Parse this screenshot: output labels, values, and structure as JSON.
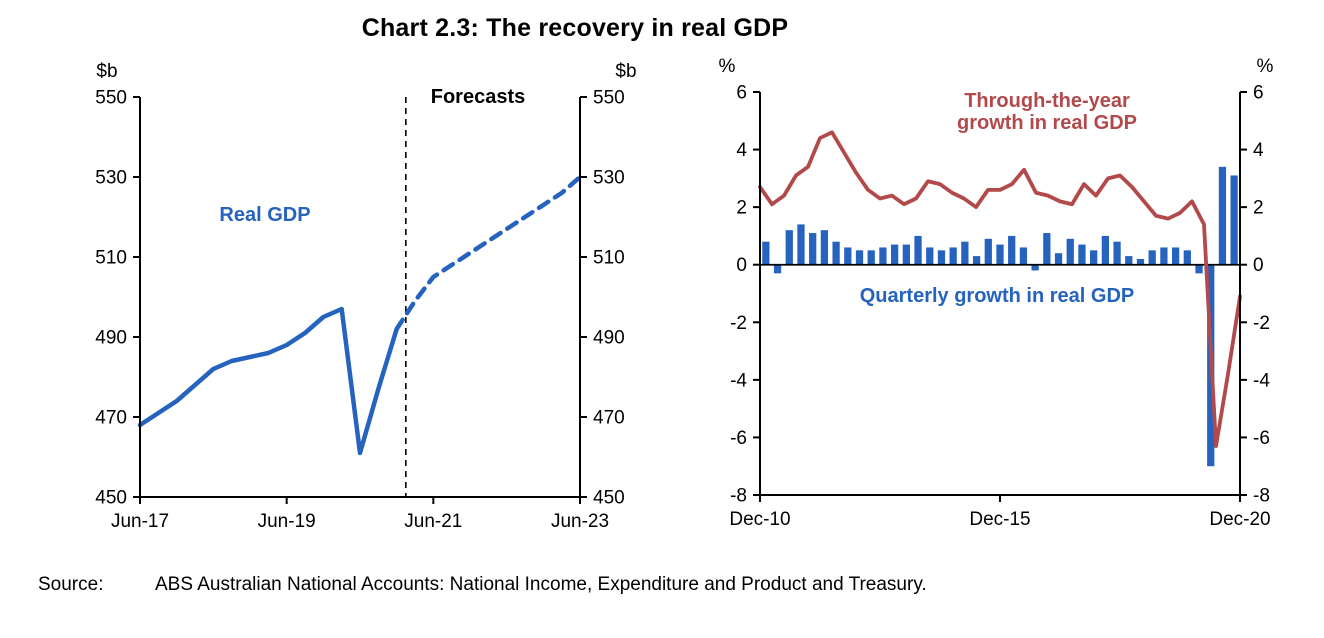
{
  "title": "Chart 2.3: The recovery in real GDP",
  "source": {
    "label": "Source:",
    "text": "ABS Australian National Accounts: National Income, Expenditure and Product and Treasury."
  },
  "colors": {
    "blue": "#2563BE",
    "red": "#B2494A",
    "axis": "#000000"
  },
  "chart_data": [
    {
      "id": "gdp_level",
      "type": "line",
      "title_annotation": "Real GDP",
      "unit_left": "$b",
      "unit_right": "$b",
      "ylim": [
        450,
        550
      ],
      "yticks": [
        450,
        470,
        490,
        510,
        530,
        550
      ],
      "xtick_labels": [
        "Jun-17",
        "Jun-19",
        "Jun-21",
        "Jun-23"
      ],
      "xtick_positions": [
        0,
        8,
        16,
        24
      ],
      "n_points": 25,
      "forecast_divider_index": 14.5,
      "annotations": {
        "series_label": "Real GDP",
        "forecast_label": "Forecasts"
      },
      "series": [
        {
          "name": "Real GDP (history)",
          "style": "solid",
          "start_index": 0,
          "x_labels_are_quarters_from": "Jun-17",
          "values": [
            468,
            471,
            474,
            478,
            482,
            484,
            485,
            486,
            488,
            491,
            495,
            497,
            461,
            477,
            492
          ]
        },
        {
          "name": "Real GDP (forecast)",
          "style": "dashed",
          "start_index": 14,
          "values": [
            492,
            499,
            505,
            508,
            511,
            514,
            517,
            520,
            523,
            526,
            530
          ]
        }
      ]
    },
    {
      "id": "gdp_growth",
      "type": "bar+line",
      "unit_left": "%",
      "unit_right": "%",
      "ylim": [
        -8,
        6
      ],
      "yticks": [
        -8,
        -6,
        -4,
        -2,
        0,
        2,
        4,
        6
      ],
      "xtick_labels": [
        "Dec-10",
        "Dec-15",
        "Dec-20"
      ],
      "xtick_positions": [
        0,
        20,
        40
      ],
      "n_points": 41,
      "annotations": {
        "line_label_line1": "Through-the-year",
        "line_label_line2": "growth in real GDP",
        "bar_label": "Quarterly growth in real GDP"
      },
      "bar_series": {
        "name": "Quarterly growth in real GDP",
        "values": [
          0.8,
          -0.3,
          1.2,
          1.4,
          1.1,
          1.2,
          0.8,
          0.6,
          0.5,
          0.5,
          0.6,
          0.7,
          0.7,
          1.0,
          0.6,
          0.5,
          0.6,
          0.8,
          0.3,
          0.9,
          0.7,
          1.0,
          0.6,
          -0.2,
          1.1,
          0.4,
          0.9,
          0.7,
          0.5,
          1.0,
          0.8,
          0.3,
          0.2,
          0.5,
          0.6,
          0.6,
          0.5,
          -0.3,
          -7.0,
          3.4,
          3.1
        ]
      },
      "line_series": {
        "name": "Through-the-year growth in real GDP",
        "values": [
          2.7,
          2.1,
          2.4,
          3.1,
          3.4,
          4.4,
          4.6,
          3.9,
          3.2,
          2.6,
          2.3,
          2.4,
          2.1,
          2.3,
          2.9,
          2.8,
          2.5,
          2.3,
          2.0,
          2.6,
          2.6,
          2.8,
          3.3,
          2.5,
          2.4,
          2.2,
          2.1,
          2.8,
          2.4,
          3.0,
          3.1,
          2.7,
          2.2,
          1.7,
          1.6,
          1.8,
          2.2,
          1.4,
          -6.3,
          -3.8,
          -1.1
        ]
      }
    }
  ]
}
